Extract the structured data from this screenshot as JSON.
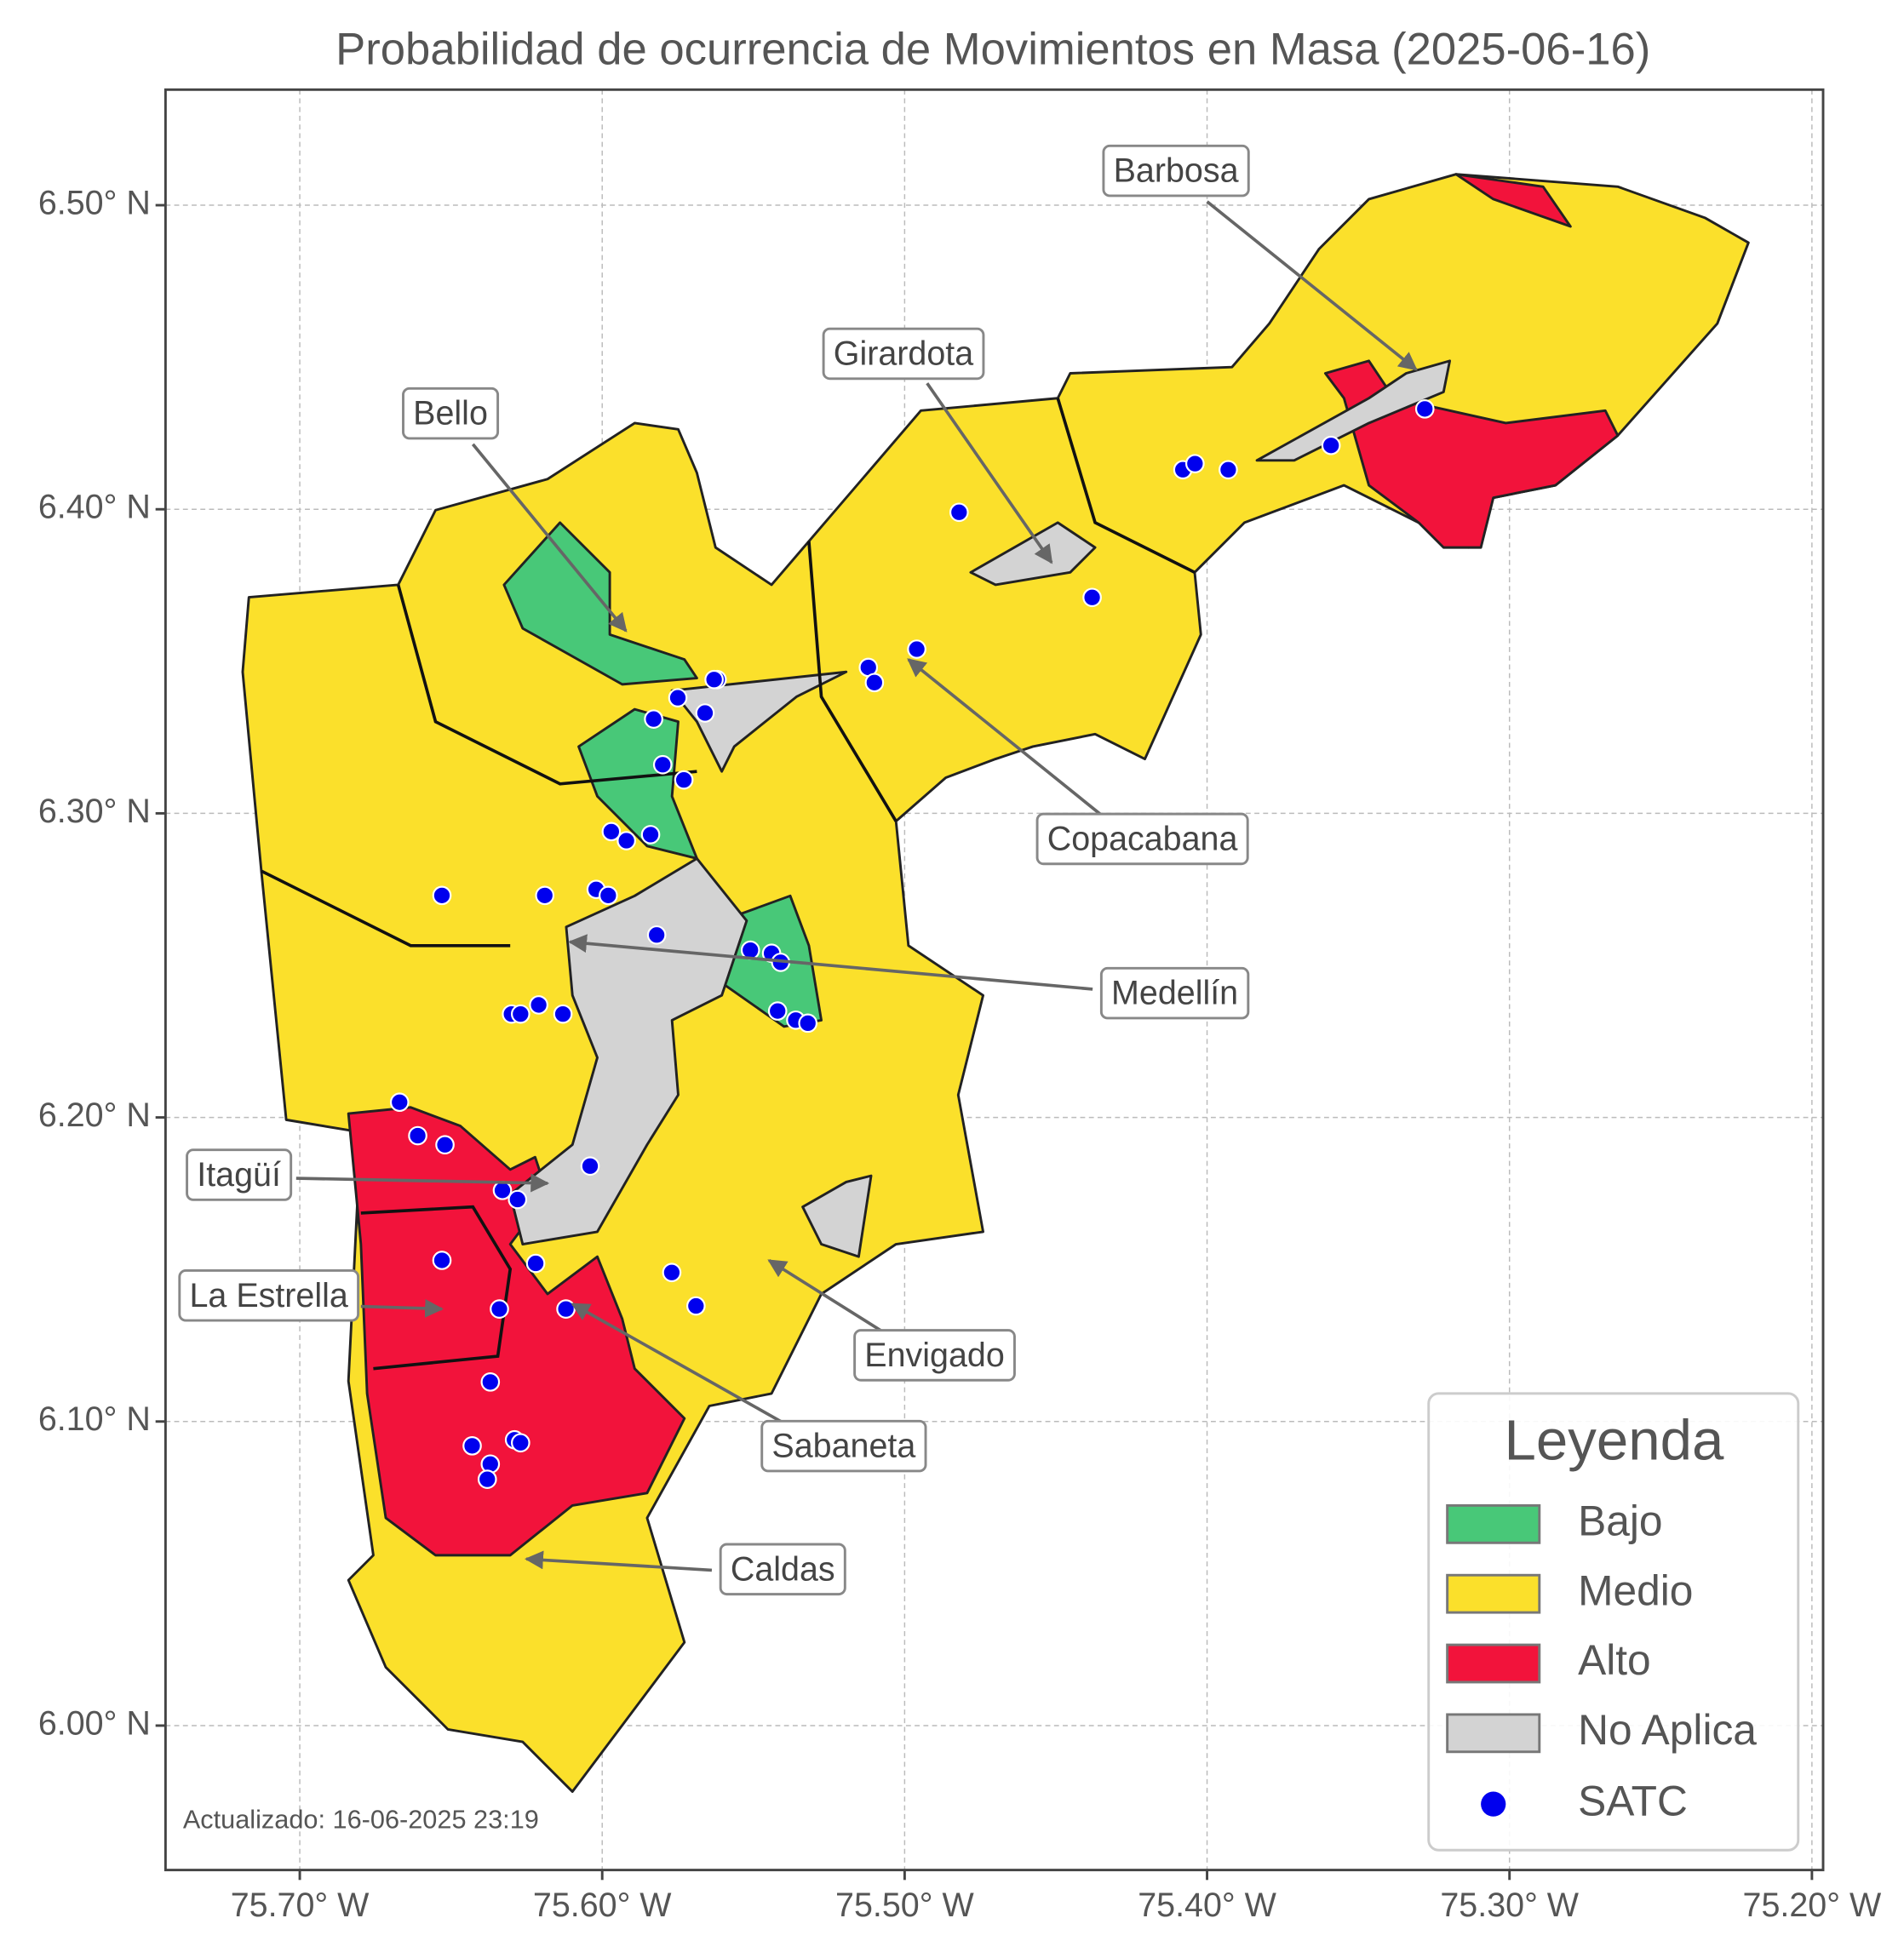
{
  "chart_data": {
    "type": "map",
    "title": "Probabilidad de ocurrencia de Movimientos en Masa (2025-06-16)",
    "xlim": [
      -75.7444,
      -75.1963
    ],
    "ylim": [
      5.9525,
      6.538
    ],
    "xticks": [
      {
        "value": -75.7,
        "label": "75.70° W"
      },
      {
        "value": -75.6,
        "label": "75.60° W"
      },
      {
        "value": -75.5,
        "label": "75.50° W"
      },
      {
        "value": -75.4,
        "label": "75.40° W"
      },
      {
        "value": -75.3,
        "label": "75.30° W"
      },
      {
        "value": -75.2,
        "label": "75.20° W"
      }
    ],
    "yticks": [
      {
        "value": 6.0,
        "label": "6.00° N"
      },
      {
        "value": 6.1,
        "label": "6.10° N"
      },
      {
        "value": 6.2,
        "label": "6.20° N"
      },
      {
        "value": 6.3,
        "label": "6.30° N"
      },
      {
        "value": 6.4,
        "label": "6.40° N"
      },
      {
        "value": 6.5,
        "label": "6.50° N"
      }
    ],
    "grid": true,
    "legend_title": "Leyenda",
    "legend_loc": "lower right",
    "levels": [
      {
        "name": "Bajo",
        "color": "#48c878"
      },
      {
        "name": "Medio",
        "color": "#fbe02b"
      },
      {
        "name": "Alto",
        "color": "#f2133b"
      },
      {
        "name": "No Aplica",
        "color": "#d3d3d3"
      }
    ],
    "series": [
      {
        "name": "SATC",
        "color": "#0000ee",
        "x": [
          -75.328,
          -75.359,
          -75.408,
          -75.404,
          -75.393,
          -75.482,
          -75.438,
          -75.496,
          -75.512,
          -75.51,
          -75.562,
          -75.563,
          -75.575,
          -75.566,
          -75.583,
          -75.58,
          -75.573,
          -75.597,
          -75.584,
          -75.592,
          -75.619,
          -75.653,
          -75.602,
          -75.598,
          -75.582,
          -75.551,
          -75.544,
          -75.541,
          -75.542,
          -75.536,
          -75.532,
          -75.63,
          -75.627,
          -75.621,
          -75.613,
          -75.667,
          -75.661,
          -75.652,
          -75.633,
          -75.628,
          -75.604,
          -75.622,
          -75.577,
          -75.569,
          -75.653,
          -75.634,
          -75.612,
          -75.637,
          -75.643,
          -75.629,
          -75.627,
          -75.637,
          -75.638
        ],
        "values": [
          6.433,
          6.421,
          6.413,
          6.415,
          6.413,
          6.399,
          6.371,
          6.354,
          6.348,
          6.343,
          6.344,
          6.344,
          6.338,
          6.333,
          6.331,
          6.316,
          6.311,
          6.294,
          6.293,
          6.291,
          6.273,
          6.273,
          6.275,
          6.273,
          6.26,
          6.255,
          6.254,
          6.251,
          6.235,
          6.232,
          6.231,
          6.234,
          6.234,
          6.237,
          6.234,
          6.205,
          6.194,
          6.191,
          6.176,
          6.173,
          6.184,
          6.152,
          6.149,
          6.138,
          6.153,
          6.137,
          6.137,
          6.113,
          6.092,
          6.094,
          6.093,
          6.086,
          6.081
        ]
      }
    ],
    "annotations": [
      "Barbosa",
      "Girardota",
      "Bello",
      "Copacabana",
      "Medellín",
      "Itagüí",
      "La Estrella",
      "Envigado",
      "Sabaneta",
      "Caldas"
    ],
    "note": "Actualizado: 16-06-2025 23:19"
  }
}
